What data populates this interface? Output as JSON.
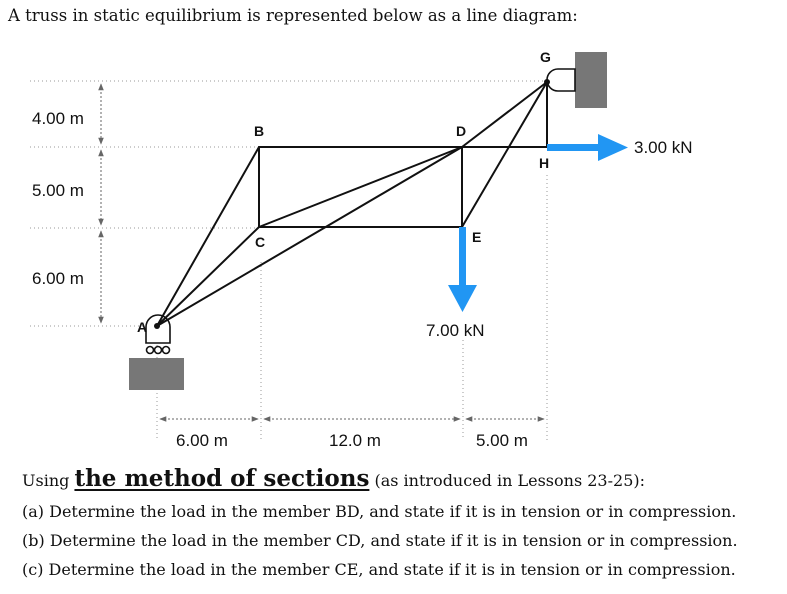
{
  "intro_text": "A truss in static equilibrium is represented below as a line diagram:",
  "nodes": {
    "A": "A",
    "B": "B",
    "C": "C",
    "D": "D",
    "E": "E",
    "G": "G",
    "H": "H"
  },
  "vertical_dims": [
    "4.00 m",
    "5.00 m",
    "6.00 m"
  ],
  "horizontal_dims": [
    "6.00 m",
    "12.0 m",
    "5.00 m"
  ],
  "loads": {
    "horizontal": "3.00 kN",
    "vertical": "7.00 kN"
  },
  "colors": {
    "load_arrow": "#2196F3",
    "support": "#777777",
    "member": "#111111"
  },
  "question": {
    "lead_before": "Using ",
    "lead_method": "the method of sections",
    "lead_after": " (as introduced in Lessons 23-25):",
    "items": [
      "(a) Determine the load in the member BD, and state if it is in tension or in compression.",
      "(b) Determine the load in the member CD, and state if it is in tension or in compression.",
      "(c) Determine the load in the member CE, and state if it is in tension or in compression."
    ]
  }
}
